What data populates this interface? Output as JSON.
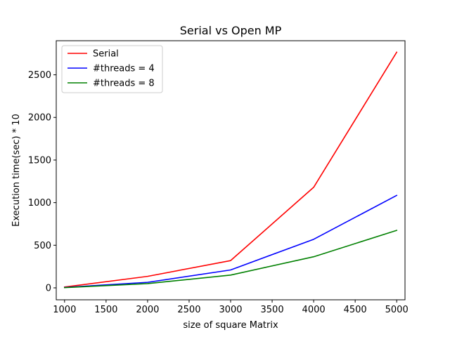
{
  "chart_data": {
    "type": "line",
    "title": "Serial vs Open MP",
    "xlabel": "size of square Matrix",
    "ylabel": "Execution time(sec) * 10",
    "x": [
      1000,
      2000,
      3000,
      4000,
      5000
    ],
    "xlim": [
      900,
      5100
    ],
    "ylim": [
      -140,
      2900
    ],
    "xticks": [
      1000,
      1500,
      2000,
      2500,
      3000,
      3500,
      4000,
      4500,
      5000
    ],
    "yticks": [
      0,
      500,
      1000,
      1500,
      2000,
      2500
    ],
    "grid": false,
    "legend_position": "upper-left",
    "series": [
      {
        "name": "Serial",
        "color": "#ff0000",
        "values": [
          10,
          135,
          320,
          1180,
          2765
        ]
      },
      {
        "name": "#threads = 4",
        "color": "#0000ff",
        "values": [
          5,
          65,
          210,
          570,
          1085
        ]
      },
      {
        "name": "#threads = 8",
        "color": "#008000",
        "values": [
          3,
          50,
          150,
          365,
          675
        ]
      }
    ]
  }
}
